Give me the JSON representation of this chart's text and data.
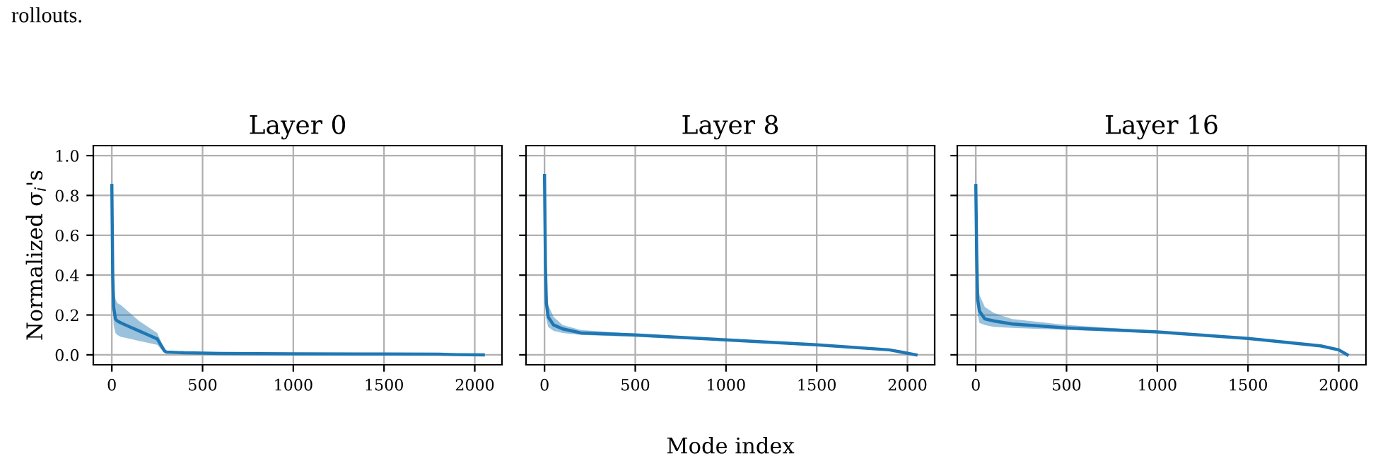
{
  "chart_data": [
    {
      "type": "line",
      "title": "Layer 0",
      "ylabel": "Normalized σ$_{i}$'s",
      "annotations": [
        "rollouts."
      ],
      "xlim": [
        -102,
        2150
      ],
      "ylim": [
        -0.05,
        1.05
      ],
      "xticks": [
        0,
        500,
        1000,
        1500,
        2000
      ],
      "yticks": [
        {
          "value": 0,
          "label": "0.0"
        },
        0.2,
        0.4,
        0.6,
        0.8,
        {
          "value": 1,
          "label": "1.0"
        }
      ],
      "grid": true,
      "series": [
        {
          "color": "#1f77b4",
          "x": [
            0,
            5,
            10,
            20,
            30,
            50,
            100,
            150,
            200,
            250,
            270,
            290,
            300,
            400,
            600,
            1000,
            1500,
            1800,
            1900,
            2047
          ],
          "values": [
            0.85,
            0.4,
            0.24,
            0.18,
            0.17,
            0.16,
            0.14,
            0.12,
            0.1,
            0.08,
            0.05,
            0.02,
            0.014,
            0.01,
            0.007,
            0.005,
            0.004,
            0.003,
            0.001,
            0.0
          ],
          "lower": [
            0.7,
            0.25,
            0.15,
            0.11,
            0.1,
            0.09,
            0.08,
            0.07,
            0.06,
            0.05,
            0.03,
            0.01,
            0.008,
            0.006,
            0.004,
            0.002,
            0.001,
            0.0,
            0.0,
            0.0
          ],
          "upper": [
            1.0,
            0.6,
            0.35,
            0.28,
            0.26,
            0.25,
            0.21,
            0.17,
            0.14,
            0.11,
            0.07,
            0.03,
            0.02,
            0.015,
            0.01,
            0.008,
            0.007,
            0.005,
            0.002,
            0.0
          ]
        }
      ]
    },
    {
      "type": "line",
      "title": "Layer 8",
      "xlabel": "Mode index",
      "xlim": [
        -102,
        2150
      ],
      "ylim": [
        -0.05,
        1.05
      ],
      "xticks": [
        0,
        500,
        1000,
        1500,
        2000
      ],
      "yticks": [
        {
          "value": 0,
          "label": null
        },
        {
          "value": 0.2,
          "label": null
        },
        {
          "value": 0.4,
          "label": null
        },
        {
          "value": 0.6,
          "label": null
        },
        {
          "value": 0.8,
          "label": null
        },
        {
          "value": 1,
          "label": null
        }
      ],
      "grid": true,
      "tick_labels": "x",
      "series": [
        {
          "color": "#1f77b4",
          "x": [
            0,
            5,
            10,
            20,
            50,
            100,
            200,
            500,
            1000,
            1500,
            1900,
            2047
          ],
          "values": [
            0.9,
            0.45,
            0.26,
            0.19,
            0.15,
            0.13,
            0.11,
            0.1,
            0.075,
            0.05,
            0.025,
            0.0
          ],
          "lower": [
            0.8,
            0.3,
            0.18,
            0.14,
            0.12,
            0.11,
            0.1,
            0.09,
            0.07,
            0.045,
            0.02,
            0.0
          ],
          "upper": [
            1.0,
            0.6,
            0.35,
            0.25,
            0.19,
            0.15,
            0.125,
            0.105,
            0.08,
            0.055,
            0.03,
            0.0
          ]
        }
      ]
    },
    {
      "type": "line",
      "title": "Layer 16",
      "xlim": [
        -102,
        2150
      ],
      "ylim": [
        -0.05,
        1.05
      ],
      "xticks": [
        0,
        500,
        1000,
        1500,
        2000
      ],
      "yticks": [
        {
          "value": 0,
          "label": null
        },
        {
          "value": 0.2,
          "label": null
        },
        {
          "value": 0.4,
          "label": null
        },
        {
          "value": 0.6,
          "label": null
        },
        {
          "value": 0.8,
          "label": null
        },
        {
          "value": 1,
          "label": null
        }
      ],
      "grid": true,
      "tick_labels": "x",
      "series": [
        {
          "color": "#1f77b4",
          "x": [
            0,
            5,
            10,
            20,
            50,
            100,
            200,
            500,
            1000,
            1500,
            1900,
            2000,
            2047
          ],
          "values": [
            0.85,
            0.5,
            0.28,
            0.22,
            0.18,
            0.17,
            0.155,
            0.135,
            0.115,
            0.082,
            0.045,
            0.025,
            0.0
          ],
          "lower": [
            0.75,
            0.35,
            0.2,
            0.16,
            0.15,
            0.14,
            0.135,
            0.125,
            0.11,
            0.08,
            0.04,
            0.02,
            0.0
          ],
          "upper": [
            1.0,
            0.7,
            0.4,
            0.3,
            0.24,
            0.21,
            0.18,
            0.15,
            0.12,
            0.085,
            0.05,
            0.03,
            0.0
          ]
        }
      ]
    }
  ]
}
